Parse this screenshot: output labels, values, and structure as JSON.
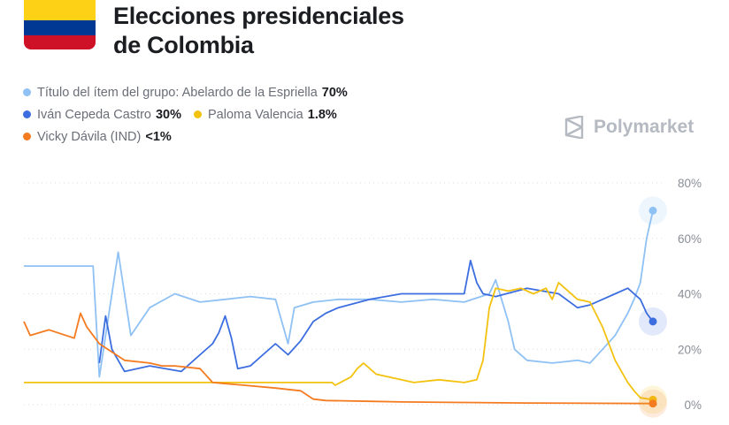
{
  "header": {
    "title_line1": "Elecciones presidenciales",
    "title_line2": "de Colombia",
    "flag_colors": [
      "#fcd116",
      "#003893",
      "#ce1126"
    ]
  },
  "brand": {
    "name": "Polymarket",
    "icon": "polymarket-logo-icon",
    "color": "#b5b9c1"
  },
  "legend": [
    {
      "label": "Título del ítem del grupo: Abelardo de la Espriella",
      "value": "70%",
      "color": "#8fc1f4"
    },
    {
      "label": "Iván Cepeda Castro",
      "value": "30%",
      "color": "#3d6ee0"
    },
    {
      "label": "Paloma Valencia",
      "value": "1.8%",
      "color": "#f3c20f"
    },
    {
      "label": "Vicky Dávila (IND)",
      "value": "<1%",
      "color": "#f47b20"
    }
  ],
  "chart_data": {
    "type": "line",
    "ylim": [
      0,
      80
    ],
    "yticks": [
      "0%",
      "20%",
      "40%",
      "60%",
      "80%"
    ],
    "grid": true,
    "series": [
      {
        "name": "Título del ítem del grupo: Abelardo de la Espriella",
        "color": "#8fc1f4",
        "end_value": 70,
        "points": [
          [
            0,
            50
          ],
          [
            11,
            50
          ],
          [
            12,
            10
          ],
          [
            14,
            40
          ],
          [
            15,
            55
          ],
          [
            17,
            25
          ],
          [
            20,
            35
          ],
          [
            24,
            40
          ],
          [
            28,
            37
          ],
          [
            32,
            38
          ],
          [
            36,
            39
          ],
          [
            40,
            38
          ],
          [
            42,
            22
          ],
          [
            43,
            35
          ],
          [
            46,
            37
          ],
          [
            50,
            38
          ],
          [
            55,
            38
          ],
          [
            60,
            37
          ],
          [
            65,
            38
          ],
          [
            70,
            37
          ],
          [
            74,
            40
          ],
          [
            75,
            45
          ],
          [
            77,
            30
          ],
          [
            78,
            20
          ],
          [
            80,
            16
          ],
          [
            84,
            15
          ],
          [
            88,
            16
          ],
          [
            90,
            15
          ],
          [
            92,
            20
          ],
          [
            94,
            25
          ],
          [
            96,
            33
          ],
          [
            97,
            38
          ],
          [
            98,
            44
          ],
          [
            99,
            60
          ],
          [
            100,
            70
          ]
        ]
      },
      {
        "name": "Iván Cepeda Castro",
        "color": "#3d6ee0",
        "end_value": 30,
        "points": [
          [
            12,
            15
          ],
          [
            13,
            32
          ],
          [
            14,
            20
          ],
          [
            16,
            12
          ],
          [
            20,
            14
          ],
          [
            25,
            12
          ],
          [
            28,
            18
          ],
          [
            30,
            22
          ],
          [
            31,
            26
          ],
          [
            32,
            32
          ],
          [
            33,
            24
          ],
          [
            34,
            13
          ],
          [
            36,
            14
          ],
          [
            38,
            18
          ],
          [
            40,
            22
          ],
          [
            42,
            18
          ],
          [
            44,
            23
          ],
          [
            46,
            30
          ],
          [
            48,
            33
          ],
          [
            50,
            35
          ],
          [
            55,
            38
          ],
          [
            60,
            40
          ],
          [
            65,
            40
          ],
          [
            70,
            40
          ],
          [
            71,
            52
          ],
          [
            72,
            44
          ],
          [
            73,
            40
          ],
          [
            75,
            39
          ],
          [
            80,
            42
          ],
          [
            85,
            40
          ],
          [
            88,
            35
          ],
          [
            90,
            36
          ],
          [
            92,
            38
          ],
          [
            94,
            40
          ],
          [
            96,
            42
          ],
          [
            98,
            38
          ],
          [
            99,
            33
          ],
          [
            100,
            30
          ]
        ]
      },
      {
        "name": "Paloma Valencia",
        "color": "#f3c20f",
        "end_value": 1.8,
        "points": [
          [
            0,
            8
          ],
          [
            49,
            8
          ],
          [
            49.5,
            7
          ],
          [
            52,
            10
          ],
          [
            53,
            13
          ],
          [
            54,
            15
          ],
          [
            56,
            11
          ],
          [
            58,
            10
          ],
          [
            62,
            8
          ],
          [
            66,
            9
          ],
          [
            70,
            8
          ],
          [
            72,
            9
          ],
          [
            73,
            16
          ],
          [
            74,
            35
          ],
          [
            75,
            42
          ],
          [
            77,
            41
          ],
          [
            79,
            42
          ],
          [
            81,
            40
          ],
          [
            83,
            42
          ],
          [
            84,
            38
          ],
          [
            85,
            44
          ],
          [
            86,
            42
          ],
          [
            88,
            38
          ],
          [
            90,
            37
          ],
          [
            92,
            28
          ],
          [
            94,
            16
          ],
          [
            96,
            8
          ],
          [
            97,
            5
          ],
          [
            98,
            2.5
          ],
          [
            100,
            1.8
          ]
        ]
      },
      {
        "name": "Vicky Dávila (IND)",
        "color": "#f47b20",
        "end_value": 0.4,
        "points": [
          [
            0,
            30
          ],
          [
            1,
            25
          ],
          [
            4,
            27
          ],
          [
            8,
            24
          ],
          [
            9,
            33
          ],
          [
            10,
            28
          ],
          [
            12,
            22
          ],
          [
            14,
            19
          ],
          [
            16,
            16
          ],
          [
            20,
            15
          ],
          [
            22,
            14
          ],
          [
            24,
            14
          ],
          [
            28,
            13
          ],
          [
            30,
            8
          ],
          [
            35,
            7
          ],
          [
            40,
            6
          ],
          [
            44,
            5
          ],
          [
            46,
            2
          ],
          [
            48,
            1.5
          ],
          [
            55,
            1.2
          ],
          [
            60,
            1
          ],
          [
            70,
            0.8
          ],
          [
            80,
            0.6
          ],
          [
            90,
            0.5
          ],
          [
            100,
            0.4
          ]
        ]
      }
    ]
  }
}
